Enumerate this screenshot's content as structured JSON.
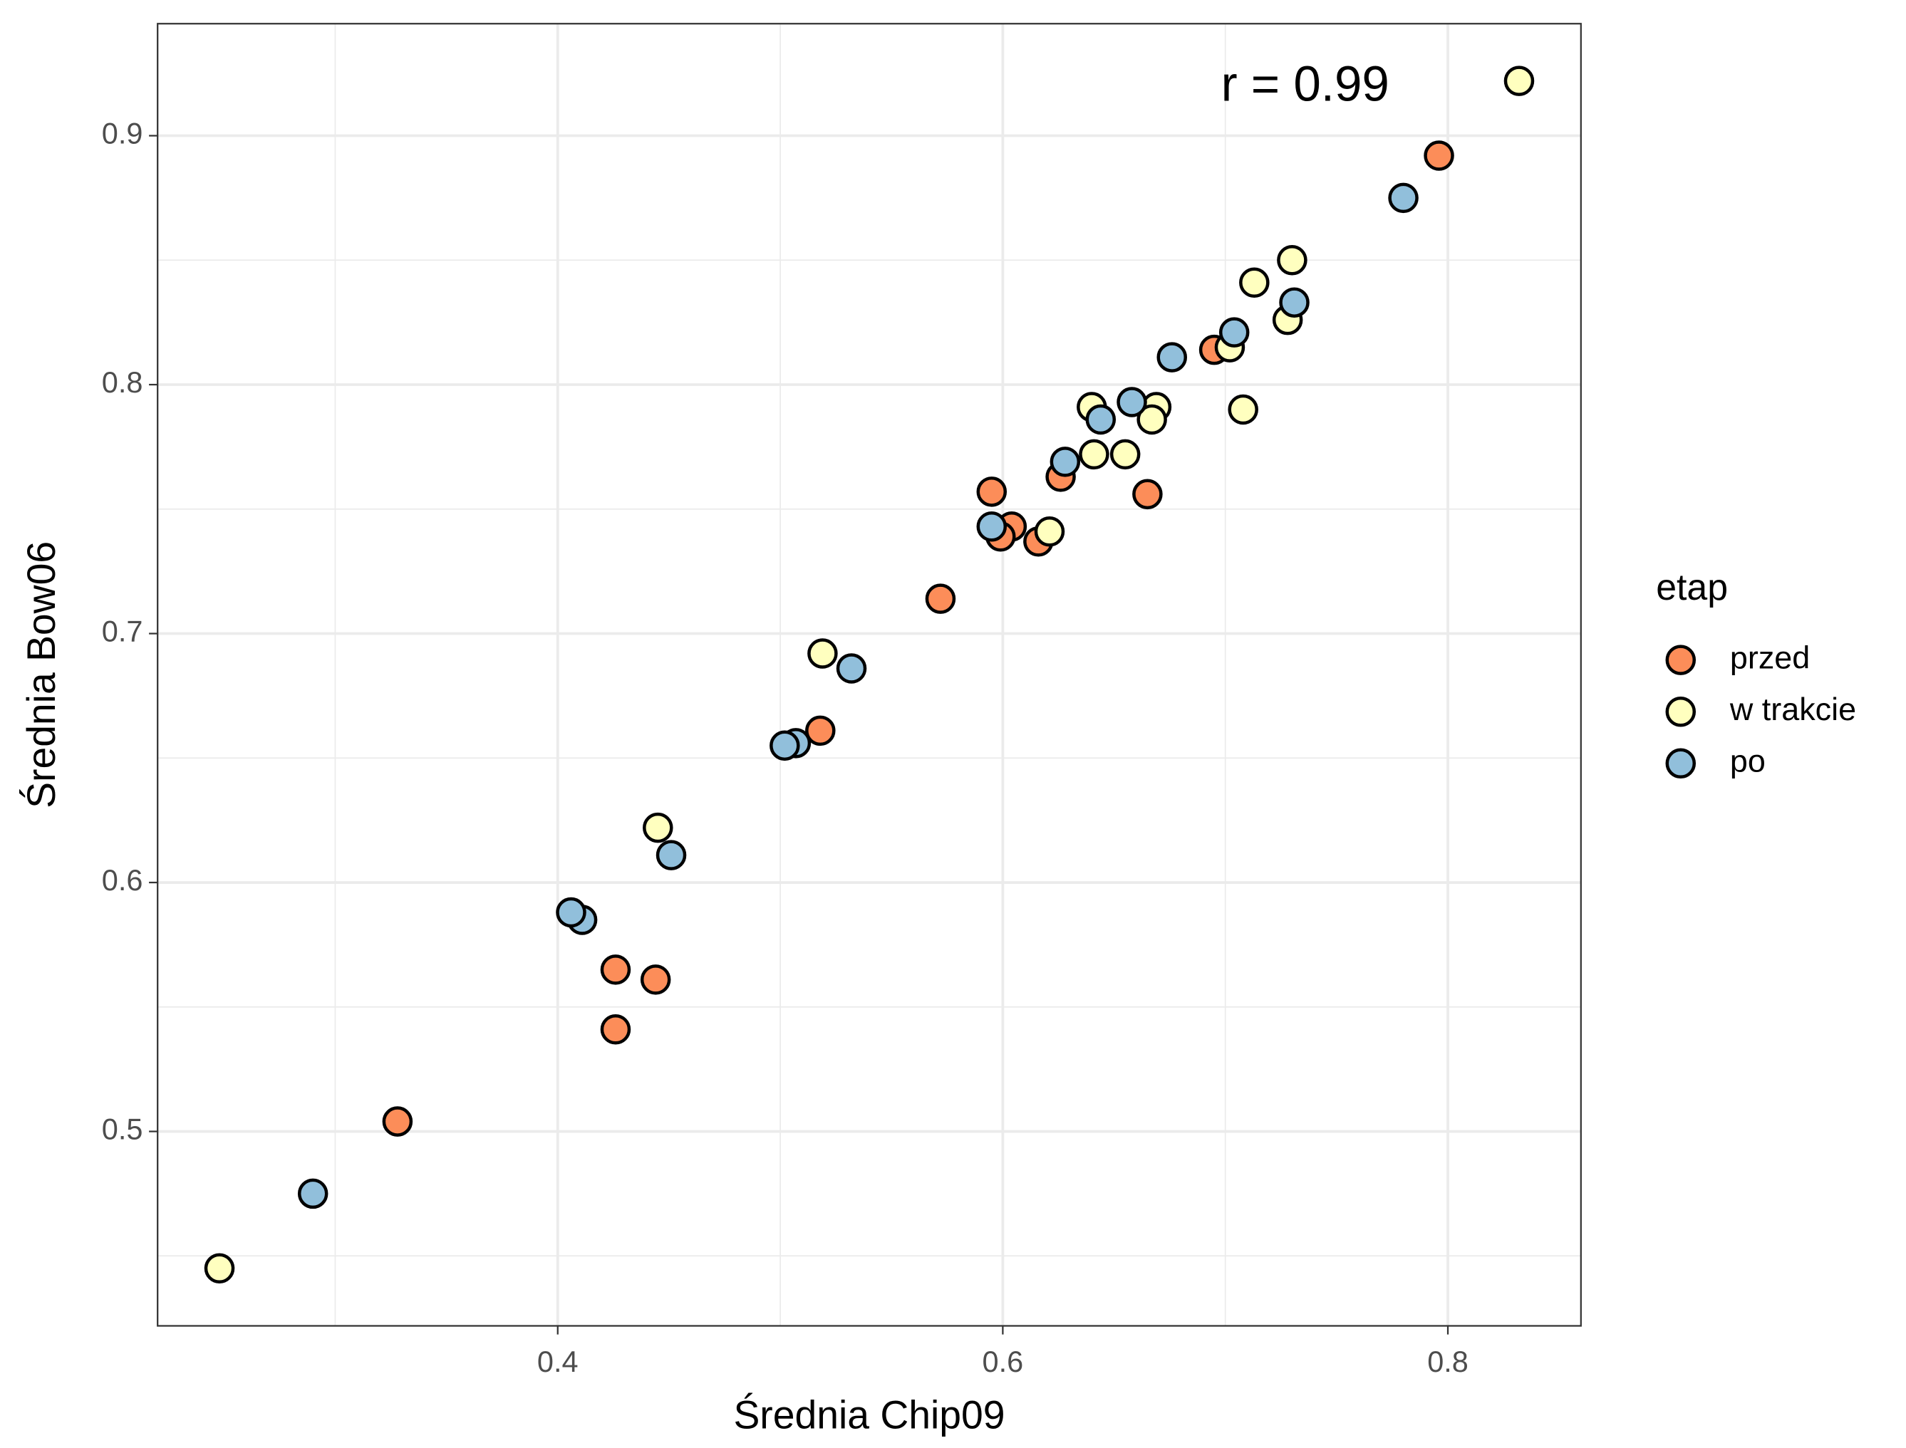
{
  "chart_data": {
    "type": "scatter",
    "xlabel": "Średnia Chip09",
    "ylabel": "Średnia Bow06",
    "annotation": "r = 0.99",
    "legend_title": "etap",
    "legend": "right",
    "grid": true,
    "xlim": [
      0.2202,
      0.8598
    ],
    "xticks": [
      0.4,
      0.6,
      0.8
    ],
    "ylim": [
      0.4219,
      0.945
    ],
    "yticks": [
      0.5,
      0.6,
      0.7,
      0.8,
      0.9
    ],
    "series": [
      {
        "name": "przed",
        "color": "#FC8D59",
        "x": [
          0.796,
          0.695,
          0.626,
          0.665,
          0.595,
          0.604,
          0.599,
          0.616,
          0.572,
          0.518,
          0.426,
          0.444,
          0.426,
          0.328
        ],
        "values": [
          0.892,
          0.814,
          0.763,
          0.756,
          0.757,
          0.743,
          0.739,
          0.737,
          0.714,
          0.661,
          0.565,
          0.561,
          0.541,
          0.504
        ]
      },
      {
        "name": "w trakcie",
        "color": "#FFFFBF",
        "x": [
          0.832,
          0.73,
          0.713,
          0.728,
          0.702,
          0.64,
          0.669,
          0.667,
          0.708,
          0.641,
          0.655,
          0.621,
          0.519,
          0.445,
          0.248
        ],
        "values": [
          0.922,
          0.85,
          0.841,
          0.826,
          0.815,
          0.791,
          0.791,
          0.786,
          0.79,
          0.772,
          0.772,
          0.741,
          0.692,
          0.622,
          0.445
        ]
      },
      {
        "name": "po",
        "color": "#91BFDB",
        "x": [
          0.78,
          0.731,
          0.704,
          0.676,
          0.658,
          0.644,
          0.628,
          0.595,
          0.532,
          0.507,
          0.502,
          0.451,
          0.411,
          0.406,
          0.29
        ],
        "values": [
          0.875,
          0.833,
          0.821,
          0.811,
          0.793,
          0.786,
          0.769,
          0.743,
          0.686,
          0.656,
          0.655,
          0.611,
          0.585,
          0.588,
          0.475
        ]
      }
    ]
  }
}
